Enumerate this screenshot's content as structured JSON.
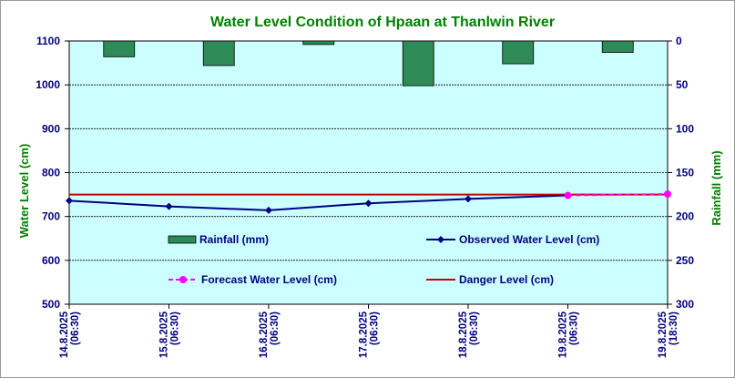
{
  "chart_data": {
    "type": "line",
    "title": "Water Level Condition of Hpaan at Thanlwin River",
    "ylabel": "Water Level (cm)",
    "y2label": "Rainfall (mm)",
    "ylim": [
      500,
      1100
    ],
    "yticks": [
      "500",
      "600",
      "700",
      "800",
      "900",
      "1000",
      "1100"
    ],
    "y2lim": [
      0,
      300
    ],
    "y2ticks": [
      "0",
      "50",
      "100",
      "150",
      "200",
      "250",
      "300"
    ],
    "categories": [
      [
        "14.8.2025",
        "(06:30)"
      ],
      [
        "15.8.2025",
        "(06:30)"
      ],
      [
        "16.8.2025",
        "(06:30)"
      ],
      [
        "17.8.2025",
        "(06:30)"
      ],
      [
        "18.8.2025",
        "(06:30)"
      ],
      [
        "19.8.2025",
        "(06:30)"
      ],
      [
        "19.8.2025",
        "(18:30)"
      ]
    ],
    "series": [
      {
        "name": "Rainfall (mm)",
        "axis": "right",
        "kind": "bar",
        "color": "#2e8b57",
        "values": [
          18,
          28,
          4,
          51,
          26,
          13,
          null
        ]
      },
      {
        "name": "Observed Water Level (cm)",
        "axis": "left",
        "kind": "line",
        "color": "#000080",
        "values": [
          736,
          723,
          714,
          730,
          740,
          748,
          null
        ]
      },
      {
        "name": "Forecast Water Level (cm)",
        "axis": "left",
        "kind": "line-dashed",
        "color": "#ff00ff",
        "values": [
          null,
          null,
          null,
          null,
          null,
          748,
          751
        ]
      },
      {
        "name": "Danger Level (cm)",
        "axis": "left",
        "kind": "line",
        "color": "#cc0000",
        "values": [
          750,
          750,
          750,
          750,
          750,
          750,
          750
        ]
      }
    ],
    "grid": true,
    "plot_background": "#ccffff"
  }
}
